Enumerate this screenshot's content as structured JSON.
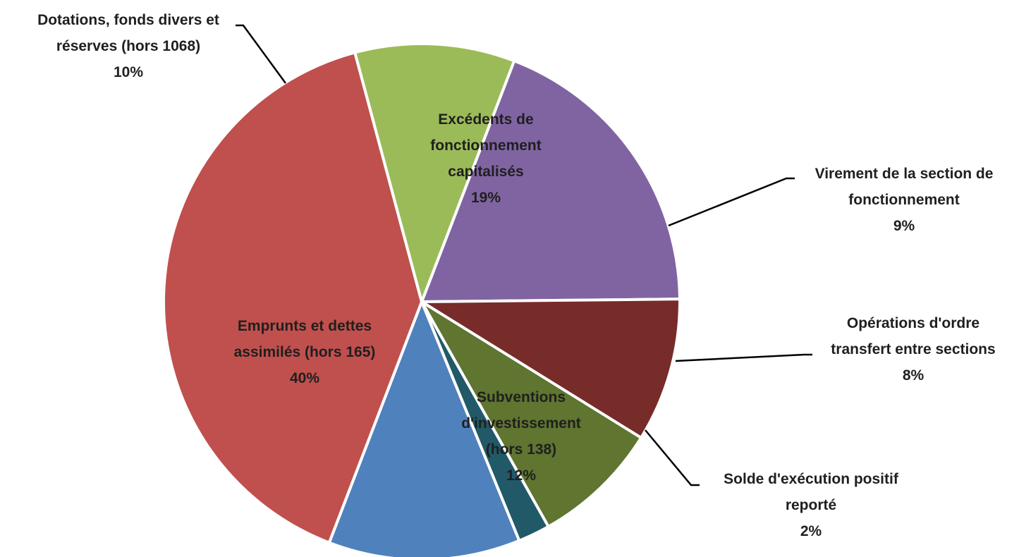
{
  "chart_data": {
    "type": "pie",
    "title": "",
    "slices": [
      {
        "label": [
          "Excédents de",
          "fonctionnement",
          "capitalisés"
        ],
        "percent": "19%",
        "value": 19,
        "color": "#8064A2"
      },
      {
        "label": [
          "Virement de la section de",
          "fonctionnement"
        ],
        "percent": "9%",
        "value": 9,
        "color": "#772C2A"
      },
      {
        "label": [
          "Opérations d'ordre",
          "transfert entre sections"
        ],
        "percent": "8%",
        "value": 8,
        "color": "#5F7530"
      },
      {
        "label": [
          "Solde d'exécution positif",
          "reporté"
        ],
        "percent": "2%",
        "value": 2,
        "color": "#215968"
      },
      {
        "label": [
          "Subventions",
          "d'investissement",
          "(hors 138)"
        ],
        "percent": "12%",
        "value": 12,
        "color": "#4F81BD"
      },
      {
        "label": [
          "Emprunts et dettes",
          "assimilés (hors 165)"
        ],
        "percent": "40%",
        "value": 40,
        "color": "#C0504D"
      },
      {
        "label": [
          "Dotations, fonds divers et",
          "réserves (hors 1068)"
        ],
        "percent": "10%",
        "value": 10,
        "color": "#9BBB59"
      }
    ],
    "start_angle_deg": 21,
    "direction": "clockwise"
  }
}
